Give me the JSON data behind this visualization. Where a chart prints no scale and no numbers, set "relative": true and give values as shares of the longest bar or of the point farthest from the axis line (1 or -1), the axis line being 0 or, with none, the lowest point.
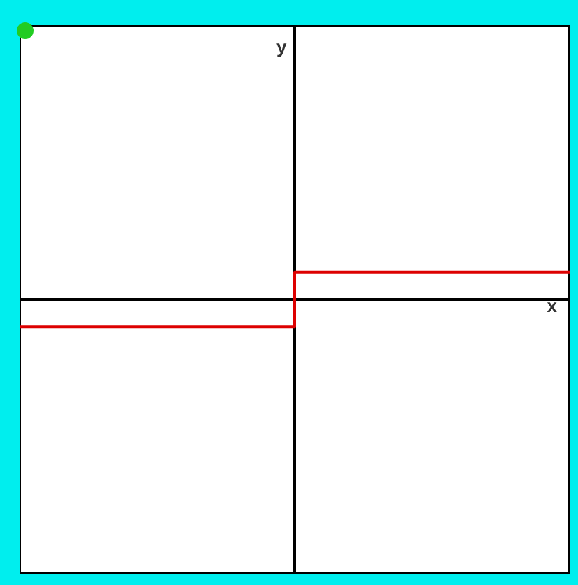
{
  "chart_data": {
    "type": "step",
    "relative": true,
    "xlabel": "x",
    "annotations": [
      "y"
    ],
    "categories": [
      null,
      null,
      null
    ],
    "series": [
      {
        "color": "#dd0000",
        "values": [
          -1,
          1,
          1
        ]
      }
    ],
    "marker": "none",
    "line_style": "solid",
    "grid": false,
    "legend": false
  }
}
